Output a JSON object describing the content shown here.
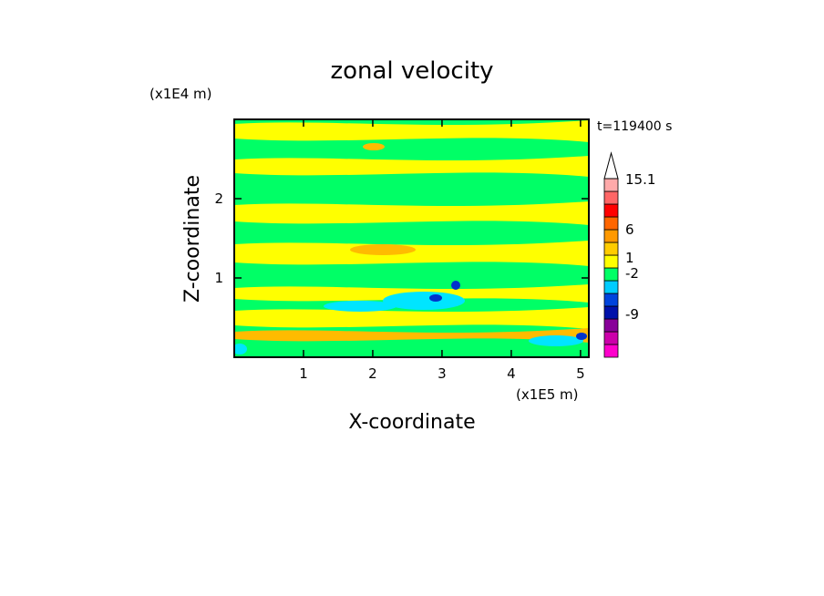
{
  "chart_data": {
    "type": "heatmap",
    "title": "zonal velocity",
    "xlabel": "X-coordinate",
    "ylabel": "Z-coordinate",
    "x_units": "(x1E5 m)",
    "y_units": "(x1E4 m)",
    "time_label": "t=119400 s",
    "xlim": [
      0,
      5.12
    ],
    "ylim": [
      0,
      3.0
    ],
    "x_ticks": [
      "1",
      "2",
      "3",
      "4",
      "5"
    ],
    "y_ticks": [
      "1",
      "2"
    ],
    "colorbar": {
      "labels": [
        "15.1",
        "6",
        "1",
        "-2",
        "-9"
      ],
      "colors": [
        "#ff00cc",
        "#cc00aa",
        "#880099",
        "#0011aa",
        "#0044dd",
        "#00ccff",
        "#00ff66",
        "#ffff00",
        "#ffcc00",
        "#ff9900",
        "#ff6600",
        "#ff0000",
        "#ff6666",
        "#ffaaaa",
        "#ffffff"
      ]
    },
    "field_colors": {
      "background": "#00ff66",
      "positive": "#ffff00",
      "strong_positive": "#ffbb00",
      "negative": "#00e5ff",
      "strong_negative": "#0033cc"
    }
  }
}
